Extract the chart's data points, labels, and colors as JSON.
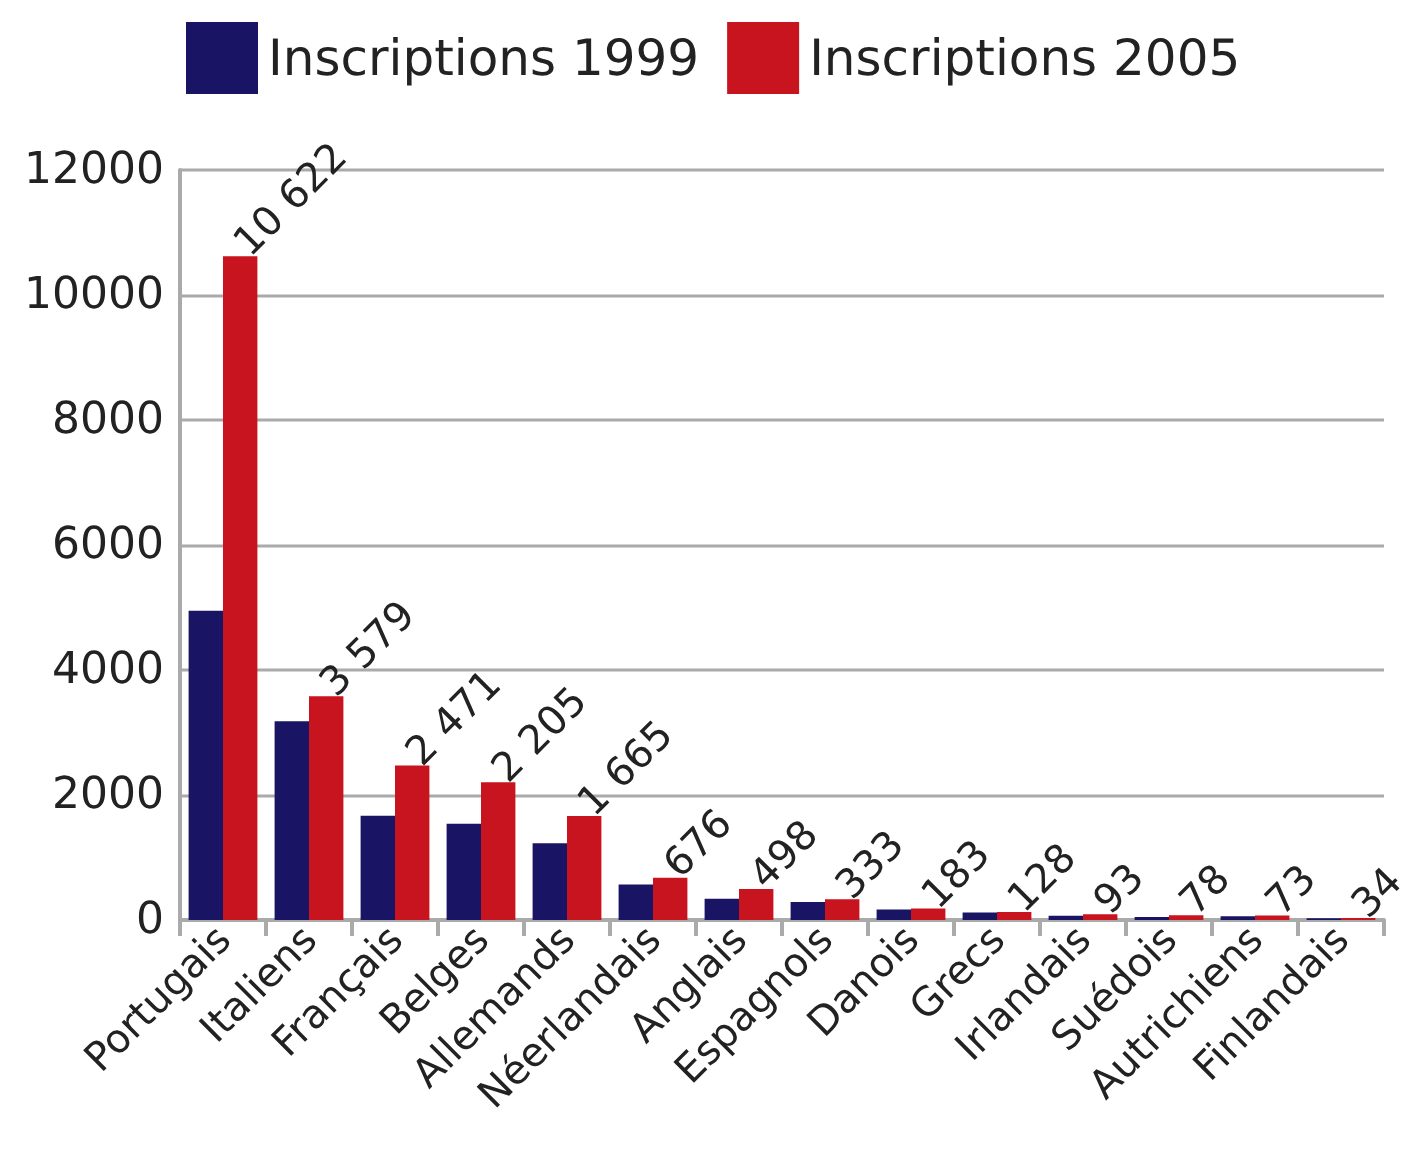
{
  "chart_data": {
    "type": "bar",
    "categories": [
      "Portugais",
      "Italiens",
      "Français",
      "Belges",
      "Allemands",
      "Néerlandais",
      "Anglais",
      "Espagnols",
      "Danois",
      "Grecs",
      "Irlandais",
      "Suédois",
      "Autrichiens",
      "Finlandais"
    ],
    "series": [
      {
        "name": "Inscriptions 1999",
        "color": "#1a1464",
        "values": [
          4950,
          3180,
          1670,
          1540,
          1230,
          570,
          340,
          290,
          170,
          120,
          70,
          50,
          60,
          30
        ]
      },
      {
        "name": "Inscriptions 2005",
        "color": "#c8141e",
        "values": [
          10622,
          3579,
          2471,
          2205,
          1665,
          676,
          498,
          333,
          183,
          128,
          93,
          78,
          73,
          34
        ],
        "value_labels": [
          "10 622",
          "3 579",
          "2 471",
          "2 205",
          "1 665",
          "676",
          "498",
          "333",
          "183",
          "128",
          "93",
          "78",
          "73",
          "34"
        ]
      }
    ],
    "ylim": [
      0,
      12000
    ],
    "yticks": [
      0,
      2000,
      4000,
      6000,
      8000,
      10000,
      12000
    ],
    "grid": "y",
    "legend": "top left"
  }
}
